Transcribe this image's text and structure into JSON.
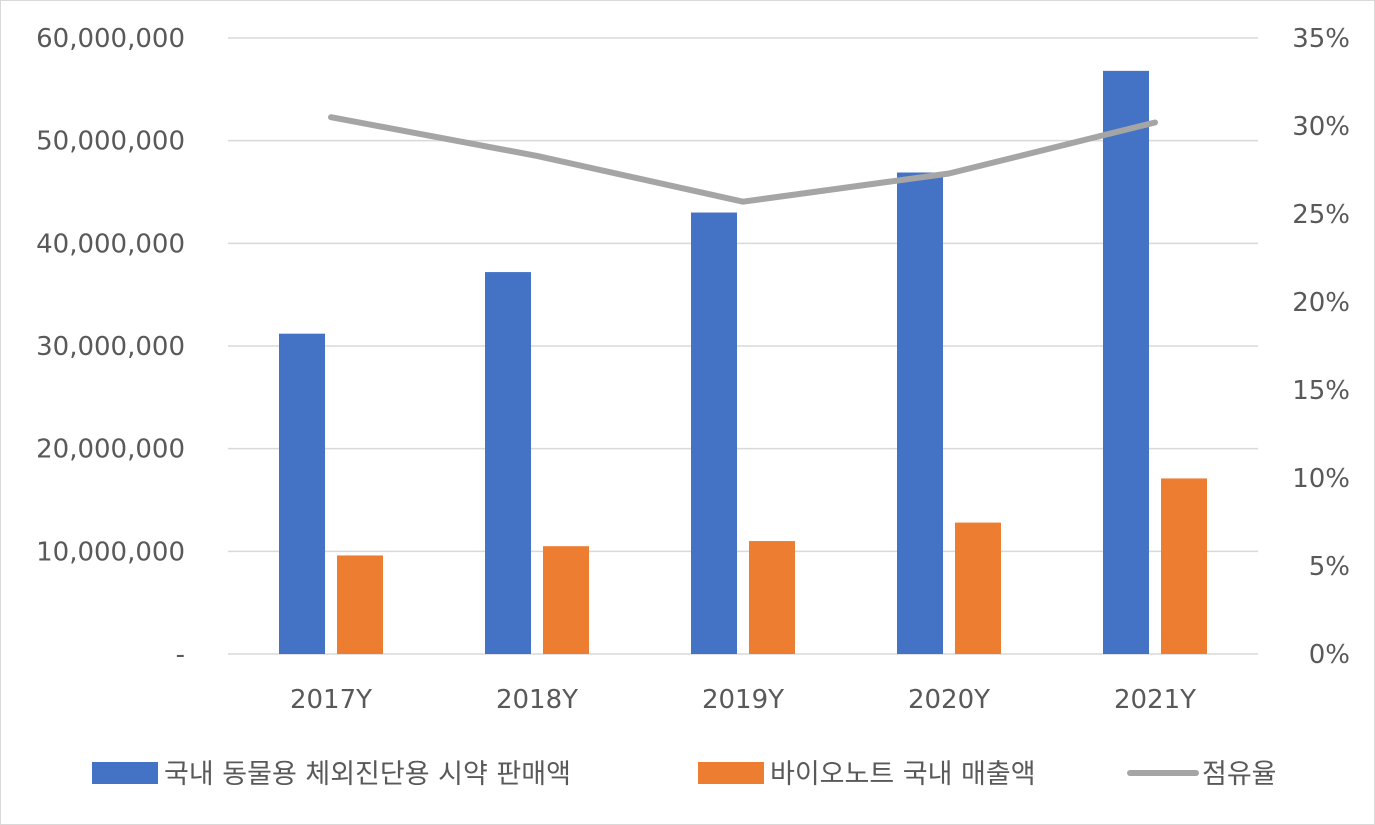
{
  "chart_data": {
    "type": "bar",
    "categories": [
      "2017Y",
      "2018Y",
      "2019Y",
      "2020Y",
      "2021Y"
    ],
    "series": [
      {
        "name": "국내 동물용 체외진단용 시약 판매액",
        "type": "bar",
        "axis": "left",
        "color": "#4472C4",
        "values": [
          31200000,
          37200000,
          43000000,
          46900000,
          56800000
        ]
      },
      {
        "name": "바이오노트 국내 매출액",
        "type": "bar",
        "axis": "left",
        "color": "#ED7D31",
        "values": [
          9600000,
          10500000,
          11000000,
          12800000,
          17100000
        ]
      },
      {
        "name": "점유율",
        "type": "line",
        "axis": "right",
        "color": "#A5A5A5",
        "values": [
          0.305,
          0.283,
          0.257,
          0.273,
          0.302
        ]
      }
    ],
    "left_axis": {
      "ylim": [
        0,
        60000000
      ],
      "tick_labels": [
        "-",
        "10,000,000",
        "20,000,000",
        "30,000,000",
        "40,000,000",
        "50,000,000",
        "60,000,000"
      ]
    },
    "right_axis": {
      "ylim": [
        0,
        0.35
      ],
      "tick_labels": [
        "0%",
        "5%",
        "10%",
        "15%",
        "20%",
        "25%",
        "30%",
        "35%"
      ]
    },
    "grid": true,
    "legend_position": "bottom"
  }
}
